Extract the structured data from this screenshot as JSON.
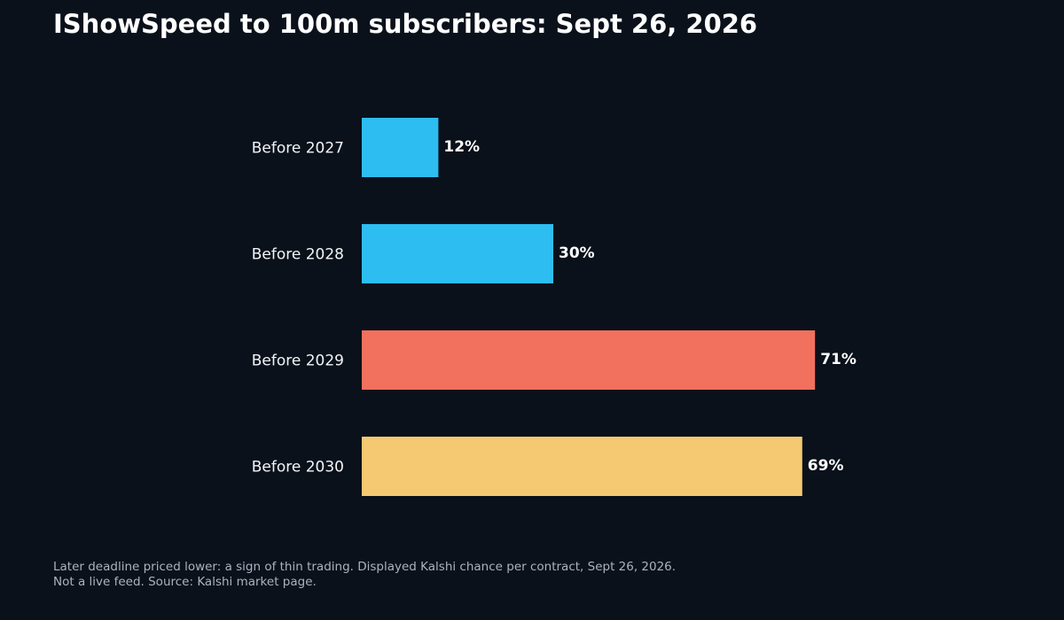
{
  "title": "IShowSpeed to 100m subscribers: Sept 26, 2026",
  "footnote": {
    "line1": "Later deadline priced lower: a sign of thin trading. Displayed Kalshi chance per contract, Sept 26, 2026.",
    "line2": "Not a live feed. Source: Kalshi market page."
  },
  "colors": {
    "background": "#0a111b",
    "blue": "#2dbdf0",
    "red": "#f2705e",
    "yellow": "#f5c971"
  },
  "chart_data": {
    "type": "bar",
    "orientation": "horizontal",
    "title": "IShowSpeed to 100m subscribers: Sept 26, 2026",
    "categories": [
      "Before 2027",
      "Before 2028",
      "Before 2029",
      "Before 2030"
    ],
    "values": [
      12,
      30,
      71,
      69
    ],
    "value_labels": [
      "12%",
      "30%",
      "71%",
      "69%"
    ],
    "bar_colors": [
      "#2dbdf0",
      "#2dbdf0",
      "#f2705e",
      "#f5c971"
    ],
    "xlim": [
      0,
      100
    ],
    "grid": false,
    "xlabel": "",
    "ylabel": ""
  }
}
